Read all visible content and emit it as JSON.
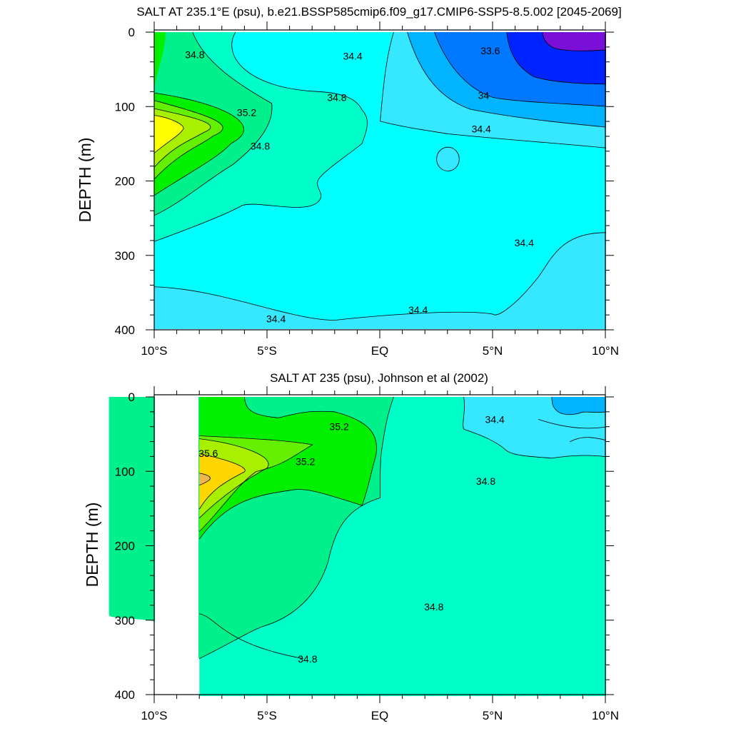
{
  "chart_data": [
    {
      "type": "contour",
      "title": "SALT AT 235.1°E (psu), b.e21.BSSP585cmip6.f09_g17.CMIP6-SSP5-8.5.002 [2045-2069]",
      "ylabel": "DEPTH (m)",
      "xlabel": "",
      "x_ticks": [
        "10°S",
        "5°S",
        "EQ",
        "5°N",
        "10°N"
      ],
      "x_tick_values": [
        -10,
        -5,
        0,
        5,
        10
      ],
      "xlim": [
        -10,
        10
      ],
      "y_ticks": [
        "0",
        "100",
        "200",
        "300",
        "400"
      ],
      "y_tick_values": [
        0,
        100,
        200,
        300,
        400
      ],
      "ylim": [
        0,
        400
      ],
      "y_reversed": true,
      "contour_interval": 0.2,
      "contour_labels": [
        {
          "text": "34.8",
          "x": -8.2,
          "y": 30
        },
        {
          "text": "34.4",
          "x": -1.2,
          "y": 32
        },
        {
          "text": "33.6",
          "x": 4.9,
          "y": 25
        },
        {
          "text": "34.8",
          "x": -1.9,
          "y": 88
        },
        {
          "text": "34",
          "x": 4.6,
          "y": 85
        },
        {
          "text": "35.2",
          "x": -5.9,
          "y": 108
        },
        {
          "text": "34.4",
          "x": 4.5,
          "y": 130
        },
        {
          "text": "34.8",
          "x": -5.3,
          "y": 153
        },
        {
          "text": "34.4",
          "x": 6.4,
          "y": 283
        },
        {
          "text": "34.4",
          "x": -4.6,
          "y": 385
        },
        {
          "text": "34.4",
          "x": 1.7,
          "y": 373
        }
      ],
      "colors": {
        "s33_4": "#7a10d8",
        "s33_6": "#0024ff",
        "s33_8": "#0078ff",
        "s34_0": "#00b4ff",
        "s34_2": "#36e8ff",
        "s34_4": "#00ffff",
        "s34_6": "#00ffc8",
        "s34_8": "#00f08c",
        "s35_0": "#00f000",
        "s35_2": "#64f000",
        "s35_4": "#a8f000",
        "s35_6": "#ffff00"
      }
    },
    {
      "type": "contour",
      "title": "SALT AT 235 (psu), Johnson et al (2002)",
      "ylabel": "DEPTH (m)",
      "xlabel": "",
      "x_ticks": [
        "10°S",
        "5°S",
        "EQ",
        "5°N",
        "10°N"
      ],
      "x_tick_values": [
        -10,
        -5,
        0,
        5,
        10
      ],
      "xlim": [
        -10,
        10
      ],
      "y_ticks": [
        "0",
        "100",
        "200",
        "300",
        "400"
      ],
      "y_tick_values": [
        0,
        100,
        200,
        300,
        400
      ],
      "ylim": [
        0,
        400
      ],
      "y_reversed": true,
      "data_x_range": [
        -8,
        10
      ],
      "contour_interval": 0.2,
      "contour_labels": [
        {
          "text": "35.2",
          "x": -1.8,
          "y": 40
        },
        {
          "text": "34.4",
          "x": 5.1,
          "y": 30
        },
        {
          "text": "35.6",
          "x": -7.6,
          "y": 76
        },
        {
          "text": "35.2",
          "x": -3.3,
          "y": 87
        },
        {
          "text": "34.8",
          "x": 4.7,
          "y": 113
        },
        {
          "text": "34.8",
          "x": 2.4,
          "y": 282
        },
        {
          "text": "34.8",
          "x": -3.2,
          "y": 352
        }
      ],
      "colors": {
        "s34_0": "#00b4ff",
        "s34_2": "#36e8ff",
        "s34_6": "#00ffc8",
        "s35_0": "#00f08c",
        "s35_2": "#00f000",
        "s35_4": "#a8f000",
        "s35_6": "#ffd700",
        "s35_8": "#f0b450"
      }
    }
  ]
}
